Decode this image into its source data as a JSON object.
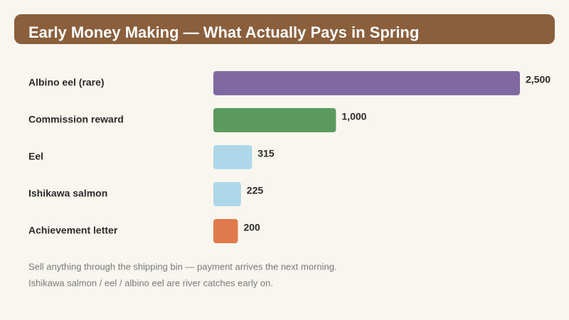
{
  "chart_data": {
    "type": "bar",
    "orientation": "horizontal",
    "title": "Early Money Making — What Actually Pays in Spring",
    "categories": [
      "Albino eel (rare)",
      "Commission reward",
      "Eel",
      "Ishikawa salmon",
      "Achievement letter"
    ],
    "values": [
      2500,
      1000,
      315,
      225,
      200
    ],
    "value_labels": [
      "2,500",
      "1,000",
      "315",
      "225",
      "200"
    ],
    "colors": [
      "#8068a0",
      "#5a9a5e",
      "#acd8ea",
      "#acd8ea",
      "#e07a4a"
    ],
    "notes": [
      "Sell anything through the shipping bin — payment arrives the next morning.",
      "Ishikawa salmon / eel / albino eel are river catches early on."
    ]
  }
}
